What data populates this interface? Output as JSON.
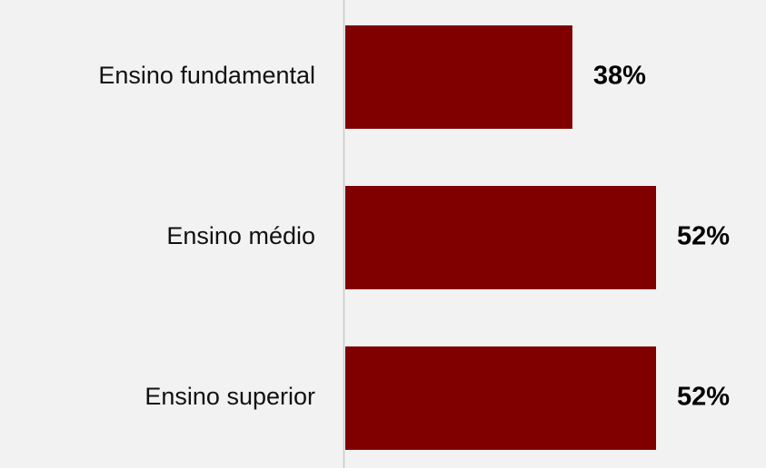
{
  "chart_data": {
    "type": "bar",
    "orientation": "horizontal",
    "categories": [
      "Ensino fundamental",
      "Ensino médio",
      "Ensino superior"
    ],
    "values": [
      38,
      52,
      52
    ],
    "value_labels": [
      "38%",
      "52%",
      "52%"
    ],
    "color": "#800000"
  }
}
